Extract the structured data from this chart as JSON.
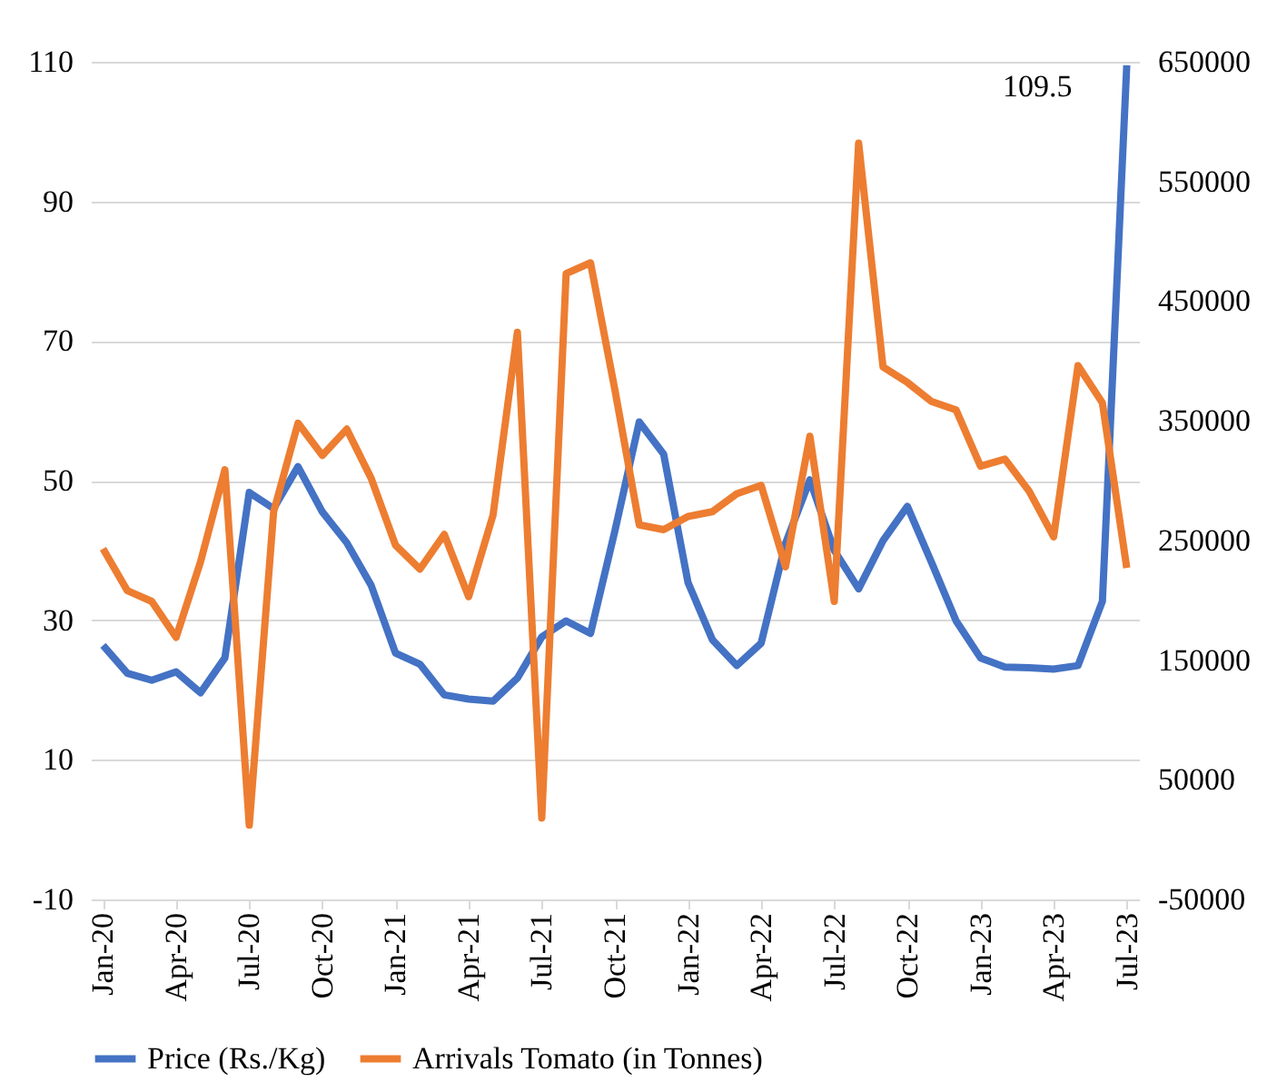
{
  "chart_data": {
    "type": "line",
    "categories": [
      "Jan-20",
      null,
      null,
      "Apr-20",
      null,
      null,
      "Jul-20",
      null,
      null,
      "Oct-20",
      null,
      null,
      "Jan-21",
      null,
      null,
      "Apr-21",
      null,
      null,
      "Jul-21",
      null,
      null,
      "Oct-21",
      null,
      null,
      "Jan-22",
      null,
      null,
      "Apr-22",
      null,
      null,
      "Jul-22",
      null,
      null,
      "Oct-22",
      null,
      null,
      "Jan-23",
      null,
      null,
      "Apr-23",
      null,
      null,
      "Jul-23"
    ],
    "series": [
      {
        "name": "Price (Rs./Kg)",
        "color": "#4472c4",
        "values": [
          26.4,
          22.4,
          21.4,
          22.6,
          19.6,
          24.6,
          48.3,
          46.0,
          52.0,
          45.5,
          41.1,
          35.0,
          25.3,
          23.7,
          19.3,
          18.7,
          18.4,
          21.7,
          27.6,
          29.9,
          28.1,
          42.8,
          58.4,
          53.8,
          35.4,
          27.2,
          23.5,
          26.7,
          41.0,
          50.1,
          40.0,
          34.5,
          41.4,
          46.3,
          38.2,
          29.9,
          24.6,
          23.3,
          23.2,
          23.0,
          23.5,
          32.7,
          109.5
        ]
      },
      {
        "name": "Arrivals Tomato (in Tonnes)",
        "color": "#ed7d31",
        "axis": "y2",
        "values": [
          243000,
          208000,
          199000,
          169000,
          232000,
          309000,
          12000,
          274000,
          348000,
          321000,
          343000,
          302000,
          246000,
          226000,
          255000,
          203000,
          271000,
          424000,
          18000,
          473000,
          482000,
          376000,
          263000,
          259000,
          270000,
          274000,
          289000,
          296000,
          228000,
          337000,
          199000,
          582000,
          395000,
          382000,
          366000,
          359000,
          312000,
          318000,
          291000,
          253000,
          396000,
          365000,
          227000
        ]
      }
    ],
    "ylim": [
      -10,
      110
    ],
    "yticks": [
      -10,
      10,
      30,
      50,
      70,
      90,
      110
    ],
    "y2lim": [
      -50000,
      650000
    ],
    "y2ticks": [
      -50000,
      50000,
      150000,
      250000,
      350000,
      450000,
      550000,
      650000
    ],
    "annotations": [
      {
        "text": "109.5",
        "x": "Jul-23",
        "y": 109.5
      }
    ],
    "grid": "y",
    "legend": "bottom",
    "line_style": "solid",
    "marker": "none"
  }
}
